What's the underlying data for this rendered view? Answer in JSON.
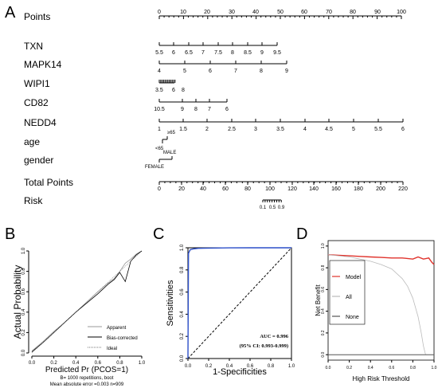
{
  "panel_letters": [
    "A",
    "B",
    "C",
    "D"
  ],
  "chart_data": [
    {
      "type": "nomogram",
      "panel": "A",
      "rows": [
        {
          "name": "Points",
          "ticks": [
            "0",
            "10",
            "20",
            "30",
            "40",
            "50",
            "60",
            "70",
            "80",
            "90",
            "100"
          ],
          "range": [
            0,
            100
          ]
        },
        {
          "name": "TXN",
          "ticks": [
            "5.5",
            "6",
            "6.5",
            "7",
            "7.5",
            "8",
            "8.5",
            "9",
            "9.5"
          ]
        },
        {
          "name": "MAPK14",
          "ticks": [
            "4",
            "5",
            "6",
            "7",
            "8",
            "9"
          ]
        },
        {
          "name": "WIPI1",
          "ticks": [
            "3.5",
            "6",
            "8"
          ]
        },
        {
          "name": "CD82",
          "ticks": [
            "10.5",
            "9",
            "8",
            "7",
            "6"
          ]
        },
        {
          "name": "NEDD4",
          "ticks": [
            "1",
            "1.5",
            "2",
            "2.5",
            "3",
            "3.5",
            "4",
            "4.5",
            "5",
            "5.5",
            "6"
          ]
        },
        {
          "name": "age",
          "ticks": [
            "≥65",
            "<65"
          ]
        },
        {
          "name": "gender",
          "ticks": [
            "MALE",
            "FEMALE"
          ]
        },
        {
          "name": "Total Points",
          "ticks": [
            "0",
            "20",
            "40",
            "60",
            "80",
            "100",
            "120",
            "140",
            "160",
            "180",
            "200",
            "220"
          ],
          "range": [
            0,
            220
          ]
        },
        {
          "name": "Risk",
          "ticks": [
            "0.1",
            "0.5",
            "0.9"
          ]
        }
      ]
    },
    {
      "type": "line",
      "panel": "B",
      "xlabel": "Predicted Pr (PCOS=1)",
      "ylabel": "Actual Probability",
      "xlim": [
        0,
        1
      ],
      "ylim": [
        0,
        1
      ],
      "xticks": [
        "0.0",
        "0.2",
        "0.4",
        "0.6",
        "0.8",
        "1.0"
      ],
      "yticks": [
        "0.0",
        "0.2",
        "0.4",
        "0.6",
        "0.8",
        "1.0"
      ],
      "legend": [
        "Apparent",
        "Bias-corrected",
        "Ideal"
      ],
      "footnote": [
        "B= 1000 repetitions, boot",
        "Mean absolute error =0.003 n=909"
      ],
      "series": [
        {
          "name": "Apparent",
          "x": [
            0.0,
            0.1,
            0.2,
            0.3,
            0.4,
            0.5,
            0.6,
            0.7,
            0.75,
            0.8,
            0.85,
            0.9,
            0.95,
            1.0
          ],
          "y": [
            0.02,
            0.11,
            0.21,
            0.3,
            0.4,
            0.5,
            0.6,
            0.69,
            0.73,
            0.8,
            0.88,
            0.92,
            0.97,
            1.0
          ]
        },
        {
          "name": "Bias-corrected",
          "x": [
            0.0,
            0.1,
            0.2,
            0.3,
            0.4,
            0.5,
            0.6,
            0.7,
            0.75,
            0.8,
            0.85,
            0.9,
            0.95,
            1.0
          ],
          "y": [
            0.01,
            0.1,
            0.2,
            0.3,
            0.4,
            0.49,
            0.58,
            0.68,
            0.72,
            0.79,
            0.7,
            0.9,
            0.96,
            1.0
          ]
        },
        {
          "name": "Ideal",
          "x": [
            0,
            1
          ],
          "y": [
            0,
            1
          ]
        }
      ]
    },
    {
      "type": "line",
      "panel": "C",
      "xlabel": "1-Specificities",
      "ylabel": "Sensitivities",
      "xlim": [
        0,
        1
      ],
      "ylim": [
        0,
        1
      ],
      "xticks": [
        "0.0",
        "0.2",
        "0.4",
        "0.6",
        "0.8",
        "1.0"
      ],
      "yticks": [
        "0.0",
        "0.2",
        "0.4",
        "0.6",
        "0.8",
        "1.0"
      ],
      "annotation": [
        "AUC = 0.996",
        "(95% CI: 0.993-0.999)"
      ],
      "series": [
        {
          "name": "ROC",
          "x": [
            0.0,
            0.005,
            0.01,
            0.02,
            0.03,
            0.05,
            0.1,
            0.2,
            0.4,
            0.6,
            0.8,
            1.0
          ],
          "y": [
            0.0,
            0.95,
            0.96,
            0.98,
            0.985,
            0.99,
            0.995,
            0.997,
            0.999,
            1.0,
            1.0,
            1.0
          ]
        },
        {
          "name": "Reference",
          "x": [
            0,
            1
          ],
          "y": [
            0,
            1
          ]
        }
      ]
    },
    {
      "type": "line",
      "panel": "D",
      "xlabel": "High Risk Threshold",
      "ylabel": "Net Benefit",
      "xlim": [
        0,
        1
      ],
      "ylim": [
        -0.05,
        1.05
      ],
      "xticks": [
        "0.0",
        "0.2",
        "0.4",
        "0.6",
        "0.8",
        "1.0"
      ],
      "yticks": [
        "0.0",
        "0.2",
        "0.4",
        "0.6",
        "0.8",
        "1.0"
      ],
      "legend": [
        "Model",
        "All",
        "None"
      ],
      "colors": {
        "model": "#e0332c",
        "all": "#bbbbbb",
        "none": "#555555"
      },
      "series": [
        {
          "name": "Model",
          "x": [
            0.0,
            0.1,
            0.2,
            0.3,
            0.4,
            0.5,
            0.6,
            0.7,
            0.8,
            0.85,
            0.9,
            0.95,
            0.98,
            1.0
          ],
          "y": [
            0.92,
            0.915,
            0.91,
            0.905,
            0.9,
            0.895,
            0.89,
            0.89,
            0.88,
            0.9,
            0.88,
            0.89,
            0.85,
            0.83
          ]
        },
        {
          "name": "All",
          "x": [
            0.0,
            0.1,
            0.2,
            0.3,
            0.4,
            0.5,
            0.6,
            0.7,
            0.75,
            0.8,
            0.85,
            0.88,
            0.9,
            0.92
          ],
          "y": [
            0.92,
            0.91,
            0.9,
            0.88,
            0.86,
            0.83,
            0.79,
            0.7,
            0.63,
            0.52,
            0.35,
            0.2,
            0.08,
            0.0
          ]
        },
        {
          "name": "None",
          "x": [
            0,
            1
          ],
          "y": [
            0,
            0
          ]
        }
      ]
    }
  ]
}
